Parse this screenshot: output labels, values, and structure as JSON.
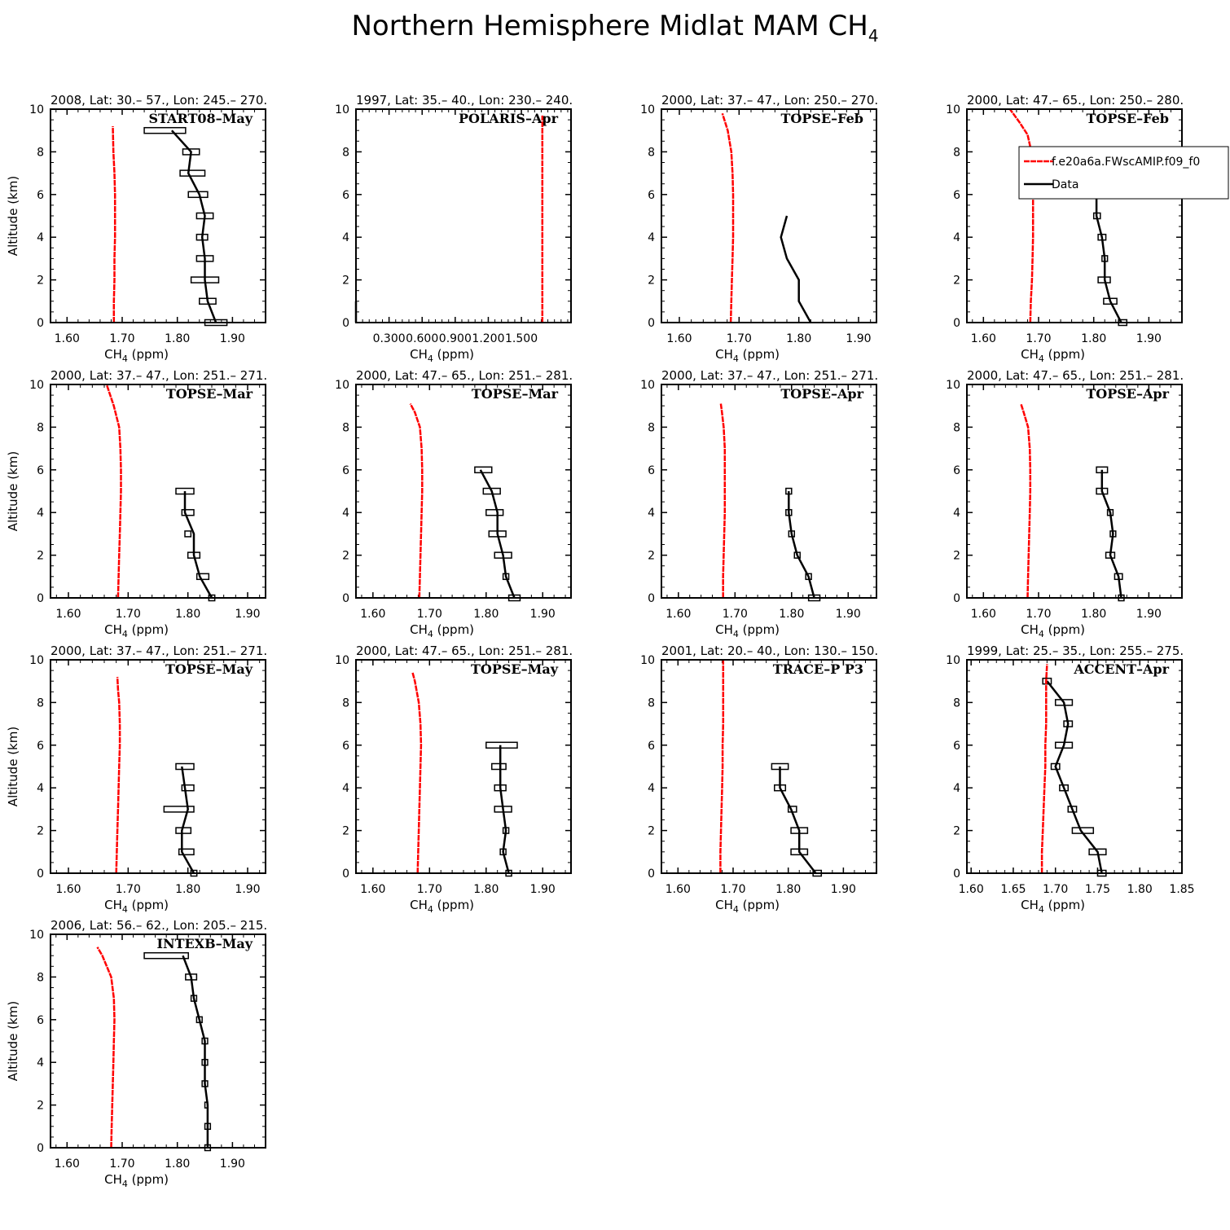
{
  "title": {
    "main": "Northern Hemisphere Midlat MAM CH",
    "sub": "4"
  },
  "common": {
    "ylabel": "Altitude (km)",
    "xlabel_main": "CH",
    "xlabel_sub": "4",
    "xlabel_unit": " (ppm)"
  },
  "legend": [
    {
      "label": "f.e20a6a.FWscAMIP.f09_f0",
      "color": "#ff0000"
    },
    {
      "label": "Data",
      "color": "#000000"
    }
  ],
  "colors": {
    "model": "#ff0000",
    "data": "#000000"
  },
  "chart_data": [
    {
      "type": "line",
      "header": "2008, Lat:  30.– 57., Lon: 245.– 270.",
      "campaign": "START08–May",
      "xlim": [
        1.57,
        1.96
      ],
      "xticks": [
        1.6,
        1.7,
        1.8,
        1.9
      ],
      "xticklabels": [
        "1.60",
        "1.70",
        "1.80",
        "1.90"
      ],
      "ylim": [
        0,
        10
      ],
      "yticks": [
        0,
        2,
        4,
        6,
        8,
        10
      ],
      "model": {
        "x": [
          1.685,
          1.685,
          1.686,
          1.686,
          1.687,
          1.687,
          1.687,
          1.686,
          1.684,
          1.683
        ],
        "y": [
          0,
          1,
          2,
          3,
          4,
          5,
          6,
          7,
          8,
          9.2
        ]
      },
      "data": {
        "x": [
          1.87,
          1.855,
          1.85,
          1.85,
          1.845,
          1.85,
          1.84,
          1.82,
          1.825,
          1.79
        ],
        "y": [
          0,
          1,
          2,
          3,
          4,
          5,
          6,
          7,
          8,
          9
        ],
        "lo": [
          1.85,
          1.84,
          1.825,
          1.835,
          1.835,
          1.835,
          1.82,
          1.805,
          1.81,
          1.74
        ],
        "hi": [
          1.89,
          1.87,
          1.875,
          1.865,
          1.855,
          1.865,
          1.855,
          1.85,
          1.84,
          1.815
        ]
      }
    },
    {
      "type": "line",
      "header": "1997, Lat: 35.– 40., Lon: 230.– 240.",
      "campaign": "POLARIS–Apr",
      "xlim": [
        0,
        1.95
      ],
      "xticks": [
        0.3,
        0.6,
        0.9,
        1.2,
        1.5
      ],
      "xticklabels": [
        "0.300",
        "0.600",
        "0.900",
        "1.200",
        "1.500"
      ],
      "ylim": [
        0,
        10
      ],
      "yticks": [
        0,
        2,
        4,
        6,
        8,
        10
      ],
      "model": {
        "x": [
          1.69,
          1.69,
          1.69,
          1.69,
          1.69,
          1.69,
          1.69,
          1.69,
          1.69,
          1.69
        ],
        "y": [
          0,
          1,
          2,
          3,
          4,
          5,
          6,
          7,
          8,
          9.7
        ]
      },
      "data": {
        "x": [
          0,
          0
        ],
        "y": [
          0,
          1
        ],
        "lo": [],
        "hi": []
      }
    },
    {
      "type": "line",
      "header": "2000, Lat: 37.– 47., Lon: 250.– 270.",
      "campaign": "TOPSE–Feb",
      "xlim": [
        1.57,
        1.93
      ],
      "xticks": [
        1.6,
        1.7,
        1.8,
        1.9
      ],
      "xticklabels": [
        "1.60",
        "1.70",
        "1.80",
        "1.90"
      ],
      "ylim": [
        0,
        10
      ],
      "yticks": [
        0,
        2,
        4,
        6,
        8,
        10
      ],
      "model": {
        "x": [
          1.686,
          1.687,
          1.688,
          1.689,
          1.69,
          1.69,
          1.69,
          1.689,
          1.687,
          1.681,
          1.672
        ],
        "y": [
          0,
          1,
          2,
          3,
          4,
          5,
          6,
          7,
          8,
          9,
          9.8
        ]
      },
      "data": {
        "x": [
          1.82,
          1.8,
          1.8,
          1.78,
          1.77,
          1.78
        ],
        "y": [
          0,
          1,
          2,
          3,
          4,
          5
        ],
        "lo": [],
        "hi": []
      }
    },
    {
      "type": "line",
      "header": "2000, Lat: 47.– 65., Lon: 250.– 280.",
      "campaign": "TOPSE–Feb",
      "legend": true,
      "xlim": [
        1.57,
        1.96
      ],
      "xticks": [
        1.6,
        1.7,
        1.8,
        1.9
      ],
      "xticklabels": [
        "1.60",
        "1.70",
        "1.80",
        "1.90"
      ],
      "ylim": [
        0,
        10
      ],
      "yticks": [
        0,
        2,
        4,
        6,
        8,
        10
      ],
      "model": {
        "x": [
          1.685,
          1.686,
          1.688,
          1.689,
          1.69,
          1.69,
          1.69,
          1.689,
          1.687,
          1.68,
          1.665,
          1.648
        ],
        "y": [
          0,
          1,
          2,
          3,
          4,
          5,
          6,
          7,
          8,
          8.8,
          9.4,
          10
        ]
      },
      "data": {
        "x": [
          1.85,
          1.83,
          1.82,
          1.82,
          1.815,
          1.805,
          1.805
        ],
        "y": [
          0,
          1,
          2,
          3,
          4,
          5,
          6
        ],
        "lo": [
          1.845,
          1.818,
          1.808,
          1.815,
          1.808,
          1.8,
          1.8
        ],
        "hi": [
          1.86,
          1.842,
          1.83,
          1.825,
          1.822,
          1.812,
          1.81
        ]
      }
    },
    {
      "type": "line",
      "header": "2000, Lat: 37.– 47., Lon: 251.– 271.",
      "campaign": "TOPSE–Mar",
      "xlim": [
        1.57,
        1.93
      ],
      "xticks": [
        1.6,
        1.7,
        1.8,
        1.9
      ],
      "xticklabels": [
        "1.60",
        "1.70",
        "1.80",
        "1.90"
      ],
      "ylim": [
        0,
        10
      ],
      "yticks": [
        0,
        2,
        4,
        6,
        8,
        10
      ],
      "model": {
        "x": [
          1.683,
          1.684,
          1.685,
          1.686,
          1.687,
          1.688,
          1.688,
          1.687,
          1.685,
          1.676,
          1.664
        ],
        "y": [
          0,
          1,
          2,
          3,
          4,
          5,
          6,
          7,
          8,
          9,
          10
        ]
      },
      "data": {
        "x": [
          1.84,
          1.82,
          1.81,
          1.81,
          1.795,
          1.795
        ],
        "y": [
          0,
          1,
          2,
          3,
          4,
          5
        ],
        "lo": [
          1.835,
          1.815,
          1.8,
          1.795,
          1.79,
          1.78
        ],
        "hi": [
          1.845,
          1.835,
          1.82,
          1.805,
          1.81,
          1.81
        ]
      }
    },
    {
      "type": "line",
      "header": "2000, Lat: 47.– 65., Lon: 251.– 281.",
      "campaign": "TOPSE–Mar",
      "xlim": [
        1.57,
        1.95
      ],
      "xticks": [
        1.6,
        1.7,
        1.8,
        1.9
      ],
      "xticklabels": [
        "1.60",
        "1.70",
        "1.80",
        "1.90"
      ],
      "ylim": [
        0,
        10
      ],
      "yticks": [
        0,
        2,
        4,
        6,
        8,
        10
      ],
      "model": {
        "x": [
          1.682,
          1.683,
          1.684,
          1.685,
          1.686,
          1.687,
          1.687,
          1.686,
          1.683,
          1.674,
          1.666
        ],
        "y": [
          0,
          1,
          2,
          3,
          4,
          5,
          6,
          7,
          8,
          8.7,
          9.1
        ]
      },
      "data": {
        "x": [
          1.85,
          1.835,
          1.83,
          1.82,
          1.82,
          1.81,
          1.79
        ],
        "y": [
          0,
          1,
          2,
          3,
          4,
          5,
          6
        ],
        "lo": [
          1.84,
          1.83,
          1.815,
          1.805,
          1.8,
          1.795,
          1.78
        ],
        "hi": [
          1.86,
          1.84,
          1.845,
          1.835,
          1.83,
          1.825,
          1.81
        ]
      }
    },
    {
      "type": "line",
      "header": "2000, Lat: 37.– 47., Lon: 251.– 271.",
      "campaign": "TOPSE–Apr",
      "xlim": [
        1.57,
        1.95
      ],
      "xticks": [
        1.6,
        1.7,
        1.8,
        1.9
      ],
      "xticklabels": [
        "1.60",
        "1.70",
        "1.80",
        "1.90"
      ],
      "ylim": [
        0,
        10
      ],
      "yticks": [
        0,
        2,
        4,
        6,
        8,
        10
      ],
      "model": {
        "x": [
          1.679,
          1.679,
          1.68,
          1.681,
          1.682,
          1.682,
          1.682,
          1.682,
          1.68,
          1.677,
          1.675
        ],
        "y": [
          0,
          1,
          2,
          3,
          4,
          5,
          6,
          7,
          8,
          8.7,
          9.1
        ]
      },
      "data": {
        "x": [
          1.84,
          1.83,
          1.81,
          1.8,
          1.795,
          1.795
        ],
        "y": [
          0,
          1,
          2,
          3,
          4,
          5
        ],
        "lo": [
          1.83,
          1.825,
          1.805,
          1.795,
          1.79,
          1.79
        ],
        "hi": [
          1.85,
          1.835,
          1.815,
          1.805,
          1.8,
          1.8
        ]
      }
    },
    {
      "type": "line",
      "header": "2000, Lat: 47.– 65., Lon: 251.– 281.",
      "campaign": "TOPSE–Apr",
      "xlim": [
        1.57,
        1.96
      ],
      "xticks": [
        1.6,
        1.7,
        1.8,
        1.9
      ],
      "xticklabels": [
        "1.60",
        "1.70",
        "1.80",
        "1.90"
      ],
      "ylim": [
        0,
        10
      ],
      "yticks": [
        0,
        2,
        4,
        6,
        8,
        10
      ],
      "model": {
        "x": [
          1.68,
          1.681,
          1.682,
          1.683,
          1.684,
          1.685,
          1.685,
          1.684,
          1.681,
          1.673,
          1.668
        ],
        "y": [
          0,
          1,
          2,
          3,
          4,
          5,
          6,
          7,
          8,
          8.7,
          9.1
        ]
      },
      "data": {
        "x": [
          1.85,
          1.845,
          1.83,
          1.835,
          1.83,
          1.815,
          1.815
        ],
        "y": [
          0,
          1,
          2,
          3,
          4,
          5,
          6
        ],
        "lo": [
          1.845,
          1.838,
          1.822,
          1.83,
          1.825,
          1.805,
          1.805
        ],
        "hi": [
          1.855,
          1.852,
          1.838,
          1.84,
          1.835,
          1.825,
          1.825
        ]
      }
    },
    {
      "type": "line",
      "header": "2000, Lat: 37.– 47., Lon: 251.– 271.",
      "campaign": "TOPSE–May",
      "xlim": [
        1.57,
        1.93
      ],
      "xticks": [
        1.6,
        1.7,
        1.8,
        1.9
      ],
      "xticklabels": [
        "1.60",
        "1.70",
        "1.80",
        "1.90"
      ],
      "ylim": [
        0,
        10
      ],
      "yticks": [
        0,
        2,
        4,
        6,
        8,
        10
      ],
      "model": {
        "x": [
          1.68,
          1.681,
          1.682,
          1.683,
          1.684,
          1.685,
          1.686,
          1.686,
          1.685,
          1.683,
          1.682
        ],
        "y": [
          0,
          1,
          2,
          3,
          4,
          5,
          6,
          7,
          8,
          8.6,
          9.2
        ]
      },
      "data": {
        "x": [
          1.81,
          1.79,
          1.79,
          1.8,
          1.795,
          1.79
        ],
        "y": [
          0,
          1,
          2,
          3,
          4,
          5
        ],
        "lo": [
          1.805,
          1.785,
          1.78,
          1.76,
          1.79,
          1.78
        ],
        "hi": [
          1.815,
          1.81,
          1.805,
          1.81,
          1.81,
          1.81
        ]
      }
    },
    {
      "type": "line",
      "header": "2000, Lat: 47.– 65., Lon: 251.– 281.",
      "campaign": "TOPSE–May",
      "xlim": [
        1.57,
        1.95
      ],
      "xticks": [
        1.6,
        1.7,
        1.8,
        1.9
      ],
      "xticklabels": [
        "1.60",
        "1.70",
        "1.80",
        "1.90"
      ],
      "ylim": [
        0,
        10
      ],
      "yticks": [
        0,
        2,
        4,
        6,
        8,
        10
      ],
      "model": {
        "x": [
          1.679,
          1.68,
          1.681,
          1.682,
          1.683,
          1.684,
          1.685,
          1.684,
          1.681,
          1.674,
          1.67
        ],
        "y": [
          0,
          1,
          2,
          3,
          4,
          5,
          6,
          7,
          8,
          9,
          9.4
        ]
      },
      "data": {
        "x": [
          1.84,
          1.83,
          1.835,
          1.83,
          1.825,
          1.825,
          1.825
        ],
        "y": [
          0,
          1,
          2,
          3,
          4,
          5,
          6
        ],
        "lo": [
          1.835,
          1.825,
          1.83,
          1.815,
          1.815,
          1.81,
          1.8
        ],
        "hi": [
          1.845,
          1.835,
          1.84,
          1.845,
          1.835,
          1.835,
          1.855
        ]
      }
    },
    {
      "type": "line",
      "header": "2001, Lat: 20.– 40., Lon: 130.– 150.",
      "campaign": "TRACE–P P3",
      "xlim": [
        1.57,
        1.96
      ],
      "xticks": [
        1.6,
        1.7,
        1.8,
        1.9
      ],
      "xticklabels": [
        "1.60",
        "1.70",
        "1.80",
        "1.90"
      ],
      "ylim": [
        0,
        10
      ],
      "yticks": [
        0,
        2,
        4,
        6,
        8,
        10
      ],
      "model": {
        "x": [
          1.677,
          1.677,
          1.678,
          1.679,
          1.68,
          1.681,
          1.681,
          1.682,
          1.682,
          1.682,
          1.682
        ],
        "y": [
          0,
          1,
          2,
          3,
          4,
          5,
          6,
          7,
          8,
          9,
          10
        ]
      },
      "data": {
        "x": [
          1.85,
          1.82,
          1.82,
          1.805,
          1.785,
          1.785
        ],
        "y": [
          0,
          1,
          2,
          3,
          4,
          5
        ],
        "lo": [
          1.845,
          1.805,
          1.805,
          1.8,
          1.775,
          1.77
        ],
        "hi": [
          1.86,
          1.835,
          1.835,
          1.815,
          1.795,
          1.8
        ]
      }
    },
    {
      "type": "line",
      "header": "1999, Lat: 25.– 35., Lon: 255.– 275.",
      "campaign": "ACCENT–Apr",
      "xlim": [
        1.595,
        1.85
      ],
      "xticks": [
        1.6,
        1.65,
        1.7,
        1.75,
        1.8,
        1.85
      ],
      "xticklabels": [
        "1.60",
        "1.65",
        "1.70",
        "1.75",
        "1.80",
        "1.85"
      ],
      "ylim": [
        0,
        10
      ],
      "yticks": [
        0,
        2,
        4,
        6,
        8,
        10
      ],
      "model": {
        "x": [
          1.684,
          1.684,
          1.685,
          1.686,
          1.687,
          1.688,
          1.688,
          1.689,
          1.689,
          1.689,
          1.69
        ],
        "y": [
          0,
          1,
          2,
          3,
          4,
          5,
          6,
          7,
          8,
          9,
          9.8
        ]
      },
      "data": {
        "x": [
          1.755,
          1.75,
          1.73,
          1.72,
          1.71,
          1.7,
          1.71,
          1.715,
          1.71,
          1.69
        ],
        "y": [
          0,
          1,
          2,
          3,
          4,
          5,
          6,
          7,
          8,
          9
        ],
        "lo": [
          1.75,
          1.74,
          1.72,
          1.715,
          1.705,
          1.695,
          1.7,
          1.71,
          1.7,
          1.685
        ],
        "hi": [
          1.76,
          1.76,
          1.745,
          1.725,
          1.715,
          1.705,
          1.72,
          1.72,
          1.72,
          1.695
        ]
      }
    },
    {
      "type": "line",
      "header": "2006, Lat: 56.– 62., Lon: 205.– 215.",
      "campaign": "INTEXB–May",
      "xlim": [
        1.57,
        1.96
      ],
      "xticks": [
        1.6,
        1.7,
        1.8,
        1.9
      ],
      "xticklabels": [
        "1.60",
        "1.70",
        "1.80",
        "1.90"
      ],
      "ylim": [
        0,
        10
      ],
      "yticks": [
        0,
        2,
        4,
        6,
        8,
        10
      ],
      "model": {
        "x": [
          1.68,
          1.681,
          1.682,
          1.683,
          1.684,
          1.685,
          1.686,
          1.685,
          1.68,
          1.664,
          1.655
        ],
        "y": [
          0,
          1,
          2,
          3,
          4,
          5,
          6,
          7,
          8,
          9,
          9.4
        ]
      },
      "data": {
        "x": [
          1.855,
          1.855,
          1.855,
          1.85,
          1.85,
          1.85,
          1.84,
          1.83,
          1.825,
          1.81
        ],
        "y": [
          0,
          1,
          2,
          3,
          4,
          5,
          6,
          7,
          8,
          9
        ],
        "lo": [
          1.85,
          1.85,
          1.85,
          1.845,
          1.845,
          1.845,
          1.835,
          1.825,
          1.815,
          1.74
        ],
        "hi": [
          1.86,
          1.86,
          1.855,
          1.855,
          1.855,
          1.855,
          1.845,
          1.835,
          1.835,
          1.82
        ]
      }
    }
  ]
}
